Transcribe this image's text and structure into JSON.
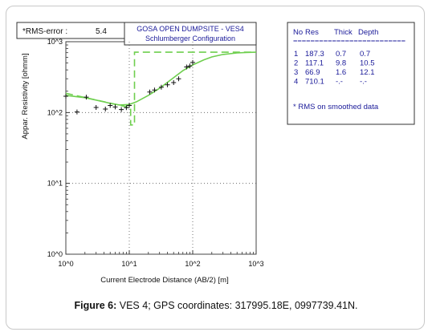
{
  "chart_data": {
    "type": "scatter",
    "title": "GOSA OPEN DUMPSITE - VES4",
    "subtitle": "Schlumberger Configuration",
    "rms_box": {
      "label": "*RMS-error :",
      "value": "5.4"
    },
    "xlabel": "Current Electrode Distance (AB/2) [m]",
    "ylabel": "Appar. Resistivity [ohmm]",
    "x_scale": "log",
    "y_scale": "log",
    "xlim": [
      1,
      1000
    ],
    "ylim": [
      1,
      1000
    ],
    "x_tick_labels": [
      "10^0",
      "10^1",
      "10^2",
      "10^3"
    ],
    "y_tick_labels": [
      "10^0",
      "10^1",
      "10^2",
      "10^3"
    ],
    "series": [
      {
        "role": "observed data (+ markers)",
        "x": [
          1.0,
          1.5,
          2.1,
          3.0,
          4.2,
          5.0,
          6.0,
          7.5,
          9.0,
          10.0,
          21.0,
          25.0,
          32.0,
          40.0,
          50.0,
          60.0,
          80.0,
          90.0,
          100.0
        ],
        "y": [
          170,
          102,
          165,
          118,
          112,
          126,
          120,
          110,
          117,
          126,
          195,
          208,
          228,
          246,
          265,
          300,
          440,
          455,
          510
        ]
      },
      {
        "role": "calculated apparent resistivity curve (solid)",
        "x": [
          1.0,
          2.0,
          3.0,
          5.0,
          7.0,
          10.0,
          13.0,
          20.0,
          30.0,
          50.0,
          70.0,
          100.0,
          150.0,
          200.0,
          300.0,
          500.0,
          700.0,
          1000.0
        ],
        "y": [
          175,
          162,
          150,
          135,
          128,
          130,
          142,
          175,
          220,
          310,
          390,
          470,
          555,
          610,
          660,
          695,
          705,
          710
        ]
      },
      {
        "role": "layered model (dashed)",
        "x": [
          1.0,
          10.5,
          10.5,
          12.1,
          12.1,
          1000.0
        ],
        "y": [
          187.3,
          117.1,
          66.9,
          66.9,
          710.1,
          710.1
        ]
      }
    ],
    "legend_table": {
      "headers": [
        "No",
        "Res",
        "Thick",
        "Depth"
      ],
      "separator": "==========================",
      "rows": [
        [
          "1",
          "187.3",
          "0.7",
          "0.7"
        ],
        [
          "2",
          "117.1",
          "9.8",
          "10.5"
        ],
        [
          "3",
          "66.9",
          "1.6",
          "12.1"
        ],
        [
          "4",
          "710.1",
          "-.-",
          "-.-"
        ]
      ],
      "note": "* RMS on smoothed data"
    },
    "colors": {
      "curve": "#6fcf4f",
      "markers": "#111111",
      "table_text": "#1a1a99",
      "title_text": "#1a1a99"
    }
  },
  "caption": {
    "label": "Figure 6:",
    "text": " VES 4; GPS coordinates: 317995.18E, 0997739.41N."
  }
}
